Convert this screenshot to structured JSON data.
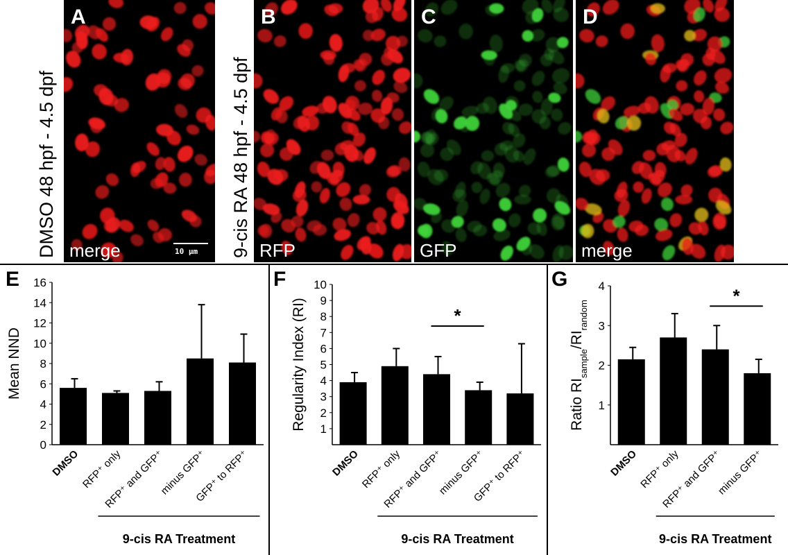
{
  "images": {
    "row_label_left": "DMSO 48 hpf - 4.5 dpf",
    "row_label_right": "9-cis RA 48 hpf - 4.5 dpf",
    "scale_bar": "10 µm",
    "panels": [
      {
        "letter": "A",
        "channel": "merge"
      },
      {
        "letter": "B",
        "channel": "RFP"
      },
      {
        "letter": "C",
        "channel": "GFP"
      },
      {
        "letter": "D",
        "channel": "merge"
      }
    ],
    "colors": {
      "rfp": "#ee1b1b",
      "gfp": "#3fd23a",
      "merge_yellow": "#e8c21a",
      "background": "#000000"
    }
  },
  "chart_data": [
    {
      "type": "bar",
      "panel": "E",
      "ylabel": "Mean NND",
      "ylim": [
        0,
        16
      ],
      "yticks": [
        0,
        2,
        4,
        6,
        8,
        10,
        12,
        14,
        16
      ],
      "categories": [
        "DMSO",
        "RFP⁺ only",
        "RFP⁺ and GFP⁺",
        "minus GFP⁺",
        "GFP⁺ to RFP⁺"
      ],
      "values": [
        5.6,
        5.1,
        5.3,
        8.5,
        8.1
      ],
      "errors": [
        0.9,
        0.2,
        0.9,
        5.3,
        2.8
      ],
      "group_label": "9-cis RA Treatment",
      "significance": []
    },
    {
      "type": "bar",
      "panel": "F",
      "ylabel": "Regularity Index (RI)",
      "ylim": [
        0,
        10
      ],
      "yticks": [
        1,
        2,
        3,
        4,
        5,
        6,
        7,
        8,
        9,
        10
      ],
      "categories": [
        "DMSO",
        "RFP⁺ only",
        "RFP⁺ and GFP⁺",
        "minus GFP⁺",
        "GFP⁺ to RFP⁺"
      ],
      "values": [
        3.9,
        4.9,
        4.4,
        3.4,
        3.2
      ],
      "errors": [
        0.6,
        1.1,
        1.1,
        0.5,
        3.1
      ],
      "group_label": "9-cis RA Treatment",
      "significance": [
        {
          "from": 2,
          "to": 3,
          "label": "*"
        }
      ]
    },
    {
      "type": "bar",
      "panel": "G",
      "ylabel": "Ratio RI",
      "ylabel_sub1": "sample",
      "ylabel_mid": "/RI",
      "ylabel_sub2": "random",
      "ylim": [
        0,
        4
      ],
      "yticks": [
        1,
        2,
        3,
        4
      ],
      "categories": [
        "DMSO",
        "RFP⁺ only",
        "RFP⁺ and GFP⁺",
        "minus GFP⁺"
      ],
      "values": [
        2.15,
        2.7,
        2.4,
        1.8
      ],
      "errors": [
        0.3,
        0.6,
        0.6,
        0.35
      ],
      "group_label": "9-cis RA Treatment",
      "significance": [
        {
          "from": 2,
          "to": 3,
          "label": "*"
        }
      ]
    }
  ]
}
